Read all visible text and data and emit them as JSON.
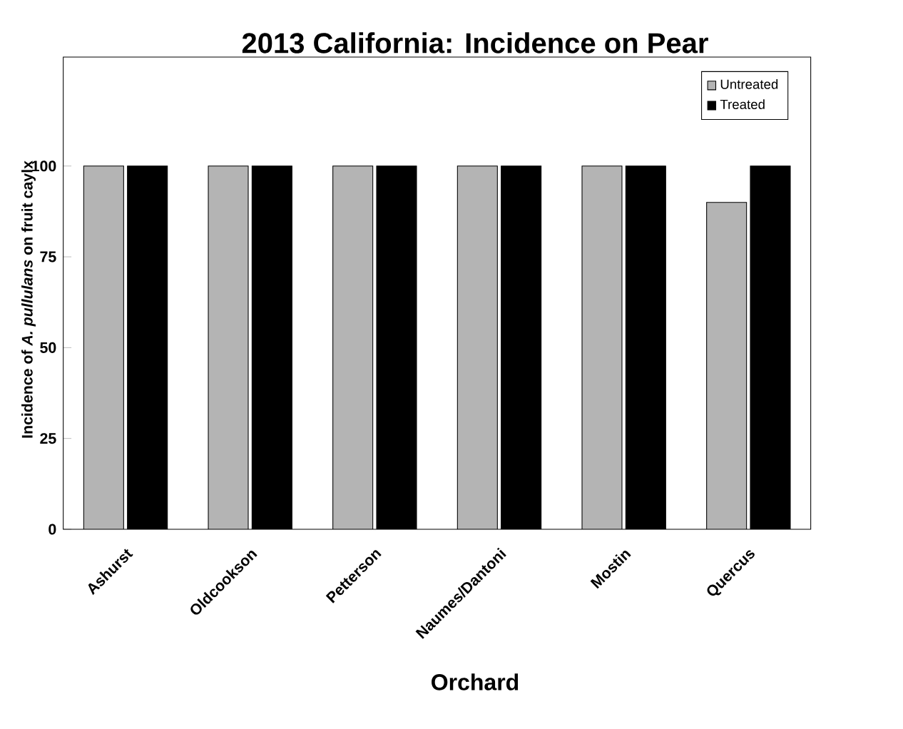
{
  "chart_data": {
    "type": "bar",
    "title": "2013 California: Incidence on Pear",
    "xlabel": "Orchard",
    "ylabel": "Incidence of *A. pullulans* on fruit caylx",
    "categories": [
      "Ashurst",
      "Oldcookson",
      "Petterson",
      "Naumes/Dantoni",
      "Mostin",
      "Quercus"
    ],
    "series": [
      {
        "name": "Untreated",
        "color": "#b4b4b4",
        "values": [
          100,
          100,
          100,
          100,
          100,
          90
        ]
      },
      {
        "name": "Treated",
        "color": "#000000",
        "values": [
          100,
          100,
          100,
          100,
          100,
          100
        ]
      }
    ],
    "ylim": [
      0,
      130
    ],
    "yticks": [
      0,
      25,
      50,
      75,
      100
    ],
    "legend": "top right",
    "grid": false
  }
}
